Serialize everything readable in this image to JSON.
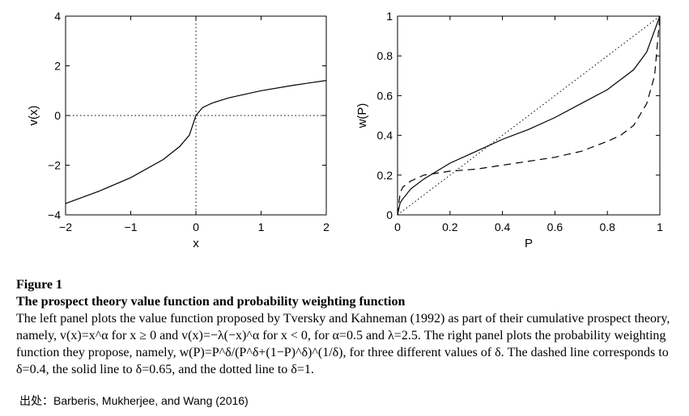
{
  "chart_data": [
    {
      "type": "line",
      "panel": "left",
      "xlabel": "x",
      "ylabel": "v(x)",
      "xlim": [
        -2,
        2
      ],
      "ylim": [
        -4,
        4
      ],
      "xticks": [
        -2,
        -1,
        0,
        1,
        2
      ],
      "xtick_labels": [
        "−2",
        "−1",
        "0",
        "1",
        "2"
      ],
      "yticks": [
        -4,
        -2,
        0,
        2,
        4
      ],
      "ytick_labels": [
        "−4",
        "−2",
        "0",
        "2",
        "4"
      ],
      "grid": false,
      "reference_lines": [
        {
          "orientation": "horizontal",
          "value": 0,
          "style": "dotted"
        },
        {
          "orientation": "vertical",
          "value": 0,
          "style": "dotted"
        }
      ],
      "series": [
        {
          "style": "solid",
          "x": [
            -2,
            -1.5,
            -1,
            -0.5,
            -0.25,
            -0.1,
            0,
            0.1,
            0.25,
            0.5,
            1,
            1.5,
            2
          ],
          "y": [
            -3.54,
            -3.06,
            -2.5,
            -1.77,
            -1.25,
            -0.79,
            0,
            0.32,
            0.5,
            0.71,
            1.0,
            1.22,
            1.41
          ]
        }
      ]
    },
    {
      "type": "line",
      "panel": "right",
      "xlabel": "P",
      "ylabel": "w(P)",
      "xlim": [
        0,
        1
      ],
      "ylim": [
        0,
        1
      ],
      "xticks": [
        0,
        0.2,
        0.4,
        0.6,
        0.8,
        1
      ],
      "xtick_labels": [
        "0",
        "0.2",
        "0.4",
        "0.6",
        "0.8",
        "1"
      ],
      "yticks": [
        0,
        0.2,
        0.4,
        0.6,
        0.8,
        1
      ],
      "ytick_labels": [
        "0",
        "0.2",
        "0.4",
        "0.6",
        "0.8",
        "1"
      ],
      "grid": false,
      "series": [
        {
          "style": "dashed",
          "x": [
            0,
            0.01,
            0.02,
            0.05,
            0.1,
            0.2,
            0.3,
            0.4,
            0.5,
            0.6,
            0.7,
            0.8,
            0.85,
            0.9,
            0.95,
            0.98,
            1
          ],
          "y": [
            0,
            0.11,
            0.14,
            0.17,
            0.2,
            0.22,
            0.23,
            0.25,
            0.27,
            0.29,
            0.32,
            0.37,
            0.4,
            0.45,
            0.56,
            0.7,
            1
          ]
        },
        {
          "style": "solid",
          "x": [
            0,
            0.01,
            0.02,
            0.05,
            0.1,
            0.2,
            0.3,
            0.4,
            0.5,
            0.6,
            0.7,
            0.8,
            0.9,
            0.95,
            1
          ],
          "y": [
            0,
            0.06,
            0.08,
            0.13,
            0.18,
            0.26,
            0.32,
            0.38,
            0.43,
            0.49,
            0.56,
            0.63,
            0.73,
            0.82,
            1
          ]
        },
        {
          "style": "dotted",
          "x": [
            0,
            1
          ],
          "y": [
            0,
            1
          ]
        }
      ]
    }
  ],
  "caption": {
    "label": "Figure 1",
    "title": "The prospect theory value function and probability weighting function",
    "text": "The left panel plots the value function proposed by Tversky and Kahneman (1992) as part of their cumulative prospect theory, namely, v(x)=x^α for x ≥ 0 and v(x)=−λ(−x)^α for x < 0, for α=0.5 and λ=2.5. The right panel plots the probability weighting function they propose, namely, w(P)=P^δ/(P^δ+(1−P)^δ)^(1/δ), for three different values of δ. The dashed line corresponds to δ=0.4, the solid line to δ=0.65, and the dotted line to δ=1."
  },
  "source": "出处：Barberis, Mukherjee, and Wang (2016)"
}
